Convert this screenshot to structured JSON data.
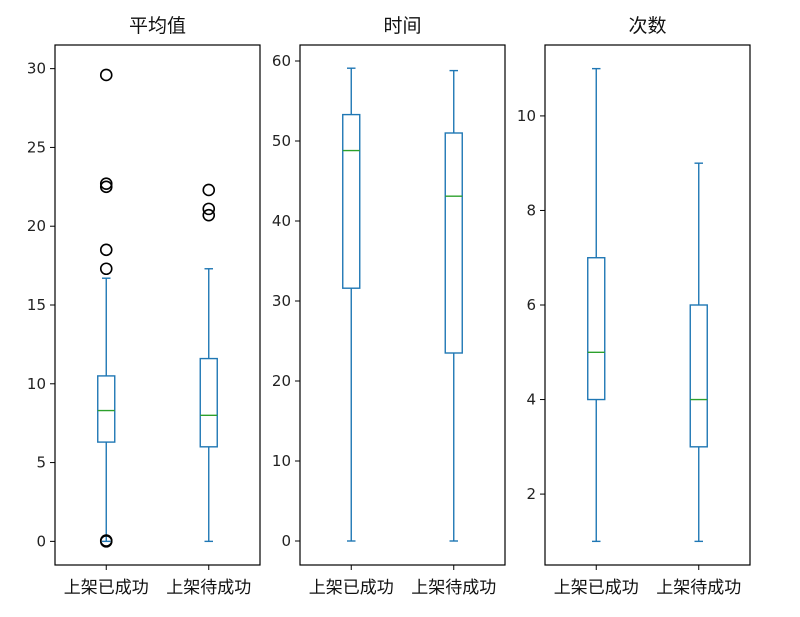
{
  "chart_data": [
    {
      "type": "box",
      "title": "平均值",
      "categories": [
        "上架已成功",
        "上架待成功"
      ],
      "ylim": [
        -1.5,
        31.5
      ],
      "yticks": [
        0,
        5,
        10,
        15,
        20,
        25,
        30
      ],
      "boxes": [
        {
          "whisker_low": 0.0,
          "q1": 6.3,
          "median": 8.3,
          "q3": 10.5,
          "whisker_high": 16.7,
          "outliers": [
            29.6,
            22.7,
            22.5,
            18.5,
            17.3,
            0.05,
            0.0
          ]
        },
        {
          "whisker_low": 0.0,
          "q1": 6.0,
          "median": 8.0,
          "q3": 11.6,
          "whisker_high": 17.3,
          "outliers": [
            22.3,
            21.1,
            20.7
          ]
        }
      ]
    },
    {
      "type": "box",
      "title": "时间",
      "categories": [
        "上架已成功",
        "上架待成功"
      ],
      "ylim": [
        -3,
        62
      ],
      "yticks": [
        0,
        10,
        20,
        30,
        40,
        50,
        60
      ],
      "boxes": [
        {
          "whisker_low": 0,
          "q1": 31.6,
          "median": 48.8,
          "q3": 53.3,
          "whisker_high": 59.1,
          "outliers": []
        },
        {
          "whisker_low": 0,
          "q1": 23.5,
          "median": 43.1,
          "q3": 51.0,
          "whisker_high": 58.8,
          "outliers": []
        }
      ]
    },
    {
      "type": "box",
      "title": "次数",
      "categories": [
        "上架已成功",
        "上架待成功"
      ],
      "ylim": [
        0.5,
        11.5
      ],
      "yticks": [
        2,
        4,
        6,
        8,
        10
      ],
      "boxes": [
        {
          "whisker_low": 1,
          "q1": 4,
          "median": 5,
          "q3": 7,
          "whisker_high": 11,
          "outliers": []
        },
        {
          "whisker_low": 1,
          "q1": 3,
          "median": 4,
          "q3": 6,
          "whisker_high": 9,
          "outliers": []
        }
      ]
    }
  ],
  "colors": {
    "box": "#1f77b4",
    "median": "#2ca02c",
    "outlier": "#000000",
    "axes": "#000000"
  }
}
